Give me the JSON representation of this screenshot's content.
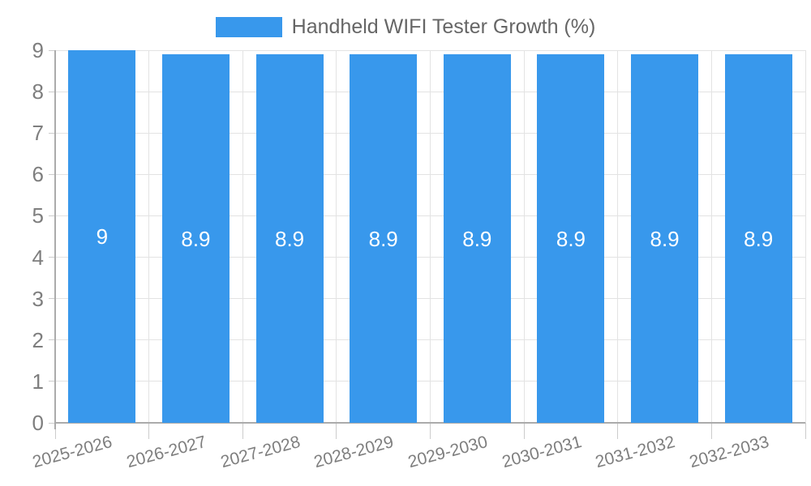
{
  "legend": {
    "label": "Handheld WIFI Tester Growth (%)"
  },
  "chart_data": {
    "type": "bar",
    "title": "Handheld WIFI Tester Growth (%)",
    "categories": [
      "2025-2026",
      "2026-2027",
      "2027-2028",
      "2028-2029",
      "2029-2030",
      "2030-2031",
      "2031-2032",
      "2032-2033"
    ],
    "values": [
      9,
      8.9,
      8.9,
      8.9,
      8.9,
      8.9,
      8.9,
      8.9
    ],
    "value_labels": [
      "9",
      "8.9",
      "8.9",
      "8.9",
      "8.9",
      "8.9",
      "8.9",
      "8.9"
    ],
    "xlabel": "",
    "ylabel": "",
    "ylim": [
      0,
      9
    ],
    "ytick_step": 1,
    "ytick_labels": [
      "0",
      "1",
      "2",
      "3",
      "4",
      "5",
      "6",
      "7",
      "8",
      "9"
    ],
    "grid": true,
    "legend_position": "top",
    "bar_color": "#3898EC",
    "bar_label_color": "#FFFFFF",
    "axis_text_color": "#7E7E7E"
  }
}
